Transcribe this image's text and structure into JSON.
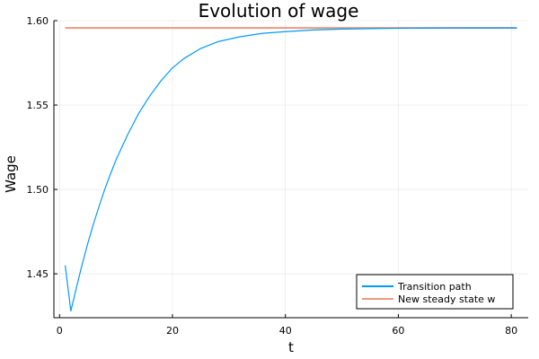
{
  "chart_data": {
    "type": "line",
    "title": "Evolution of wage",
    "xlabel": "t",
    "ylabel": "Wage",
    "xlim": [
      -1,
      83
    ],
    "ylim": [
      1.424,
      1.6
    ],
    "xticks": [
      0,
      20,
      40,
      60,
      80
    ],
    "yticks": [
      1.45,
      1.5,
      1.55,
      1.6
    ],
    "xtick_labels": [
      "0",
      "20",
      "40",
      "60",
      "80"
    ],
    "ytick_labels": [
      "1.45",
      "1.50",
      "1.55",
      "1.60"
    ],
    "grid": true,
    "legend_position": "bottom-right",
    "series": [
      {
        "name": "Transition path",
        "color": "#009af9",
        "x": [
          1,
          2,
          3,
          4,
          5,
          6,
          7,
          8,
          9,
          10,
          12,
          14,
          16,
          18,
          20,
          22,
          25,
          28,
          32,
          36,
          40,
          45,
          50,
          55,
          60,
          65,
          70,
          75,
          81
        ],
        "y": [
          1.455,
          1.428,
          1.442,
          1.4555,
          1.468,
          1.4795,
          1.49,
          1.5,
          1.509,
          1.5175,
          1.532,
          1.545,
          1.5555,
          1.5645,
          1.572,
          1.5775,
          1.5835,
          1.5875,
          1.5905,
          1.5925,
          1.5935,
          1.5945,
          1.595,
          1.5953,
          1.5955,
          1.5956,
          1.5957,
          1.5957,
          1.5957
        ]
      },
      {
        "name": "New steady state w",
        "color": "#e26f46",
        "x": [
          1,
          81
        ],
        "y": [
          1.5957,
          1.5957
        ]
      }
    ]
  }
}
